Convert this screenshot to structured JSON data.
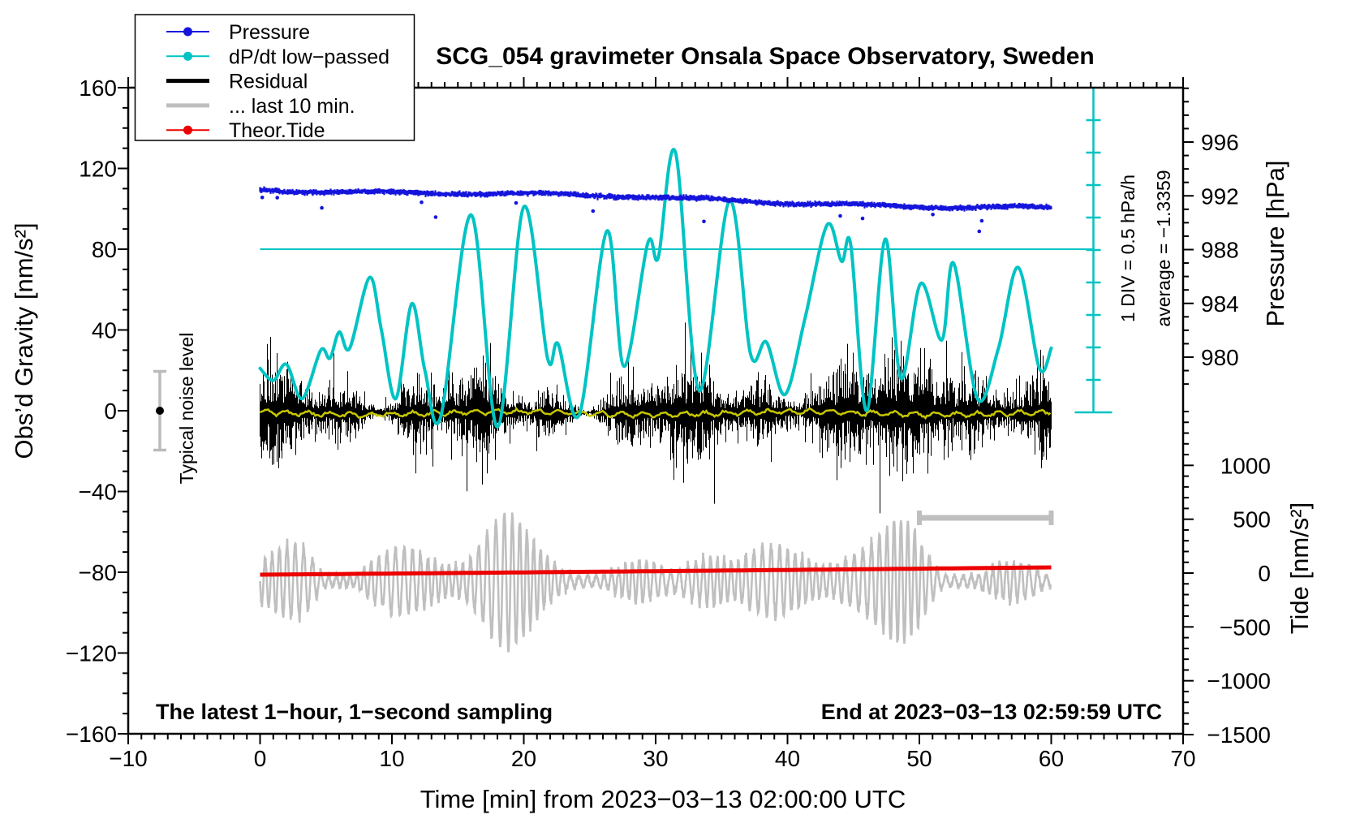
{
  "chart_data": {
    "type": "line",
    "title": "SCG_054 gravimeter Onsala Space Observatory, Sweden",
    "xlabel": "Time [min] from 2023−03−13 02:00:00 UTC",
    "x_axis": {
      "min": -10,
      "max": 70,
      "minor_step": 1,
      "tick_values": [
        -10,
        0,
        10,
        20,
        30,
        40,
        50,
        60,
        70
      ],
      "tick_labels": [
        "−10",
        "0",
        "10",
        "20",
        "30",
        "40",
        "50",
        "60",
        "70"
      ]
    },
    "left_axis": {
      "label": "Obs’d Gravity [nm/s²]",
      "min": -160,
      "max": 160,
      "minor_step": 10,
      "tick_values": [
        -160,
        -120,
        -80,
        -40,
        0,
        40,
        80,
        120,
        160
      ],
      "tick_labels": [
        "−160",
        "−120",
        "−80",
        "−40",
        "0",
        "40",
        "80",
        "120",
        "160"
      ]
    },
    "right_pressure_axis": {
      "label": "Pressure [hPa]",
      "tick_values": [
        996,
        992,
        988,
        984,
        980
      ],
      "tick_labels": [
        "996",
        "992",
        "988",
        "984",
        "980"
      ],
      "minor_from": 1000,
      "minor_to": 978,
      "minor_step": 1
    },
    "right_tide_axis": {
      "label": "Tide [nm/s²]",
      "tick_values": [
        1000,
        500,
        0,
        -500,
        -1000,
        -1500
      ],
      "tick_labels": [
        "1000",
        "500",
        "0",
        "−500",
        "−1000",
        "−1500"
      ],
      "minor_from": 1500,
      "minor_to": -1500,
      "minor_step": 100
    },
    "legend": {
      "items": [
        {
          "label": "Pressure",
          "color": "#1414dc",
          "thick": false,
          "marker": true
        },
        {
          "label": "dP/dt low−passed",
          "color": "#00c3c3",
          "thick": false,
          "marker": true
        },
        {
          "label": "Residual",
          "color": "#000000",
          "thick": true,
          "marker": false
        },
        {
          "label": "... last 10 min.",
          "color": "#bfbfbf",
          "thick": true,
          "marker": false
        },
        {
          "label": "Theor.Tide",
          "color": "#ec0000",
          "thick": false,
          "marker": true
        }
      ]
    },
    "annotations": {
      "div_scale": "1 DIV = 0.5 hPa/h",
      "average": "average = −1.3359",
      "noise_label": "Typical noise level",
      "bottom_left": "The latest 1−hour, 1−second sampling",
      "bottom_right": "End at 2023−03−13 02:59:59 UTC"
    },
    "series": {
      "pressure": {
        "name": "Pressure",
        "axis": "pressure",
        "color": "#1414dc",
        "start_hpa": 992.55,
        "end_hpa": 991.05,
        "noise_hpa": 0.09,
        "outlier_count": 13
      },
      "dpdt": {
        "name": "dP/dt low−passed",
        "axis": "gravity",
        "color": "#00c3c3",
        "zero_line_gravity": 80,
        "points": [
          [
            0,
            21
          ],
          [
            1,
            15
          ],
          [
            2,
            23
          ],
          [
            3.2,
            6
          ],
          [
            4.6,
            30
          ],
          [
            5.3,
            26
          ],
          [
            6,
            39
          ],
          [
            6.8,
            31
          ],
          [
            8.3,
            66
          ],
          [
            9.2,
            40
          ],
          [
            10.3,
            6
          ],
          [
            11.5,
            53
          ],
          [
            12.5,
            20
          ],
          [
            13.7,
            -3
          ],
          [
            16,
            97
          ],
          [
            18,
            -8
          ],
          [
            20,
            101
          ],
          [
            21.8,
            26
          ],
          [
            22.6,
            33
          ],
          [
            24.2,
            -2
          ],
          [
            26.3,
            89
          ],
          [
            27.6,
            22
          ],
          [
            29.4,
            83
          ],
          [
            30.2,
            76
          ],
          [
            31.5,
            128
          ],
          [
            33.3,
            10
          ],
          [
            35.6,
            104
          ],
          [
            37.2,
            28
          ],
          [
            38.4,
            34
          ],
          [
            39.8,
            8
          ],
          [
            41.3,
            45
          ],
          [
            43,
            92
          ],
          [
            44.1,
            74
          ],
          [
            44.8,
            82
          ],
          [
            46,
            0
          ],
          [
            47.4,
            85
          ],
          [
            48.6,
            16
          ],
          [
            50.1,
            63
          ],
          [
            51.7,
            35
          ],
          [
            52.6,
            73
          ],
          [
            54.4,
            6
          ],
          [
            56,
            31
          ],
          [
            57.5,
            71
          ],
          [
            59.1,
            21
          ],
          [
            60,
            31
          ]
        ]
      },
      "residual": {
        "name": "Residual",
        "axis": "gravity",
        "color": "#000000",
        "center_gravity": -1,
        "core_amp": 11,
        "spike_amp": 33,
        "t_start": 0,
        "t_end": 60
      },
      "residual_lowpass": {
        "name": "low−passed residual",
        "axis": "gravity",
        "color": "#c6c600",
        "center_gravity": -1.2
      },
      "last10": {
        "name": "... last 10 min.",
        "axis": "tide",
        "color": "#bfbfbf",
        "center_tide": -75,
        "period_min": 0.58,
        "t_start": 0,
        "t_end": 60
      },
      "tide": {
        "name": "Theor.Tide",
        "axis": "tide",
        "color": "#ec0000",
        "t": [
          0,
          30,
          60
        ],
        "values": [
          -15,
          16,
          53
        ]
      }
    },
    "markers": {
      "noise_errorbar": {
        "t": -7.6,
        "gravity_center": 0,
        "gravity_halfwidth": 19.5,
        "color": "#bbbbbb"
      },
      "last10_scalebar": {
        "t_start": 50,
        "t_end": 60,
        "tide_level": 513,
        "color": "#bfbfbf"
      },
      "div_bar": {
        "t": 63.2,
        "gravity_top": 160,
        "gravity_bottom": 0,
        "n_divs": 10,
        "color": "#00c3c3"
      }
    }
  }
}
